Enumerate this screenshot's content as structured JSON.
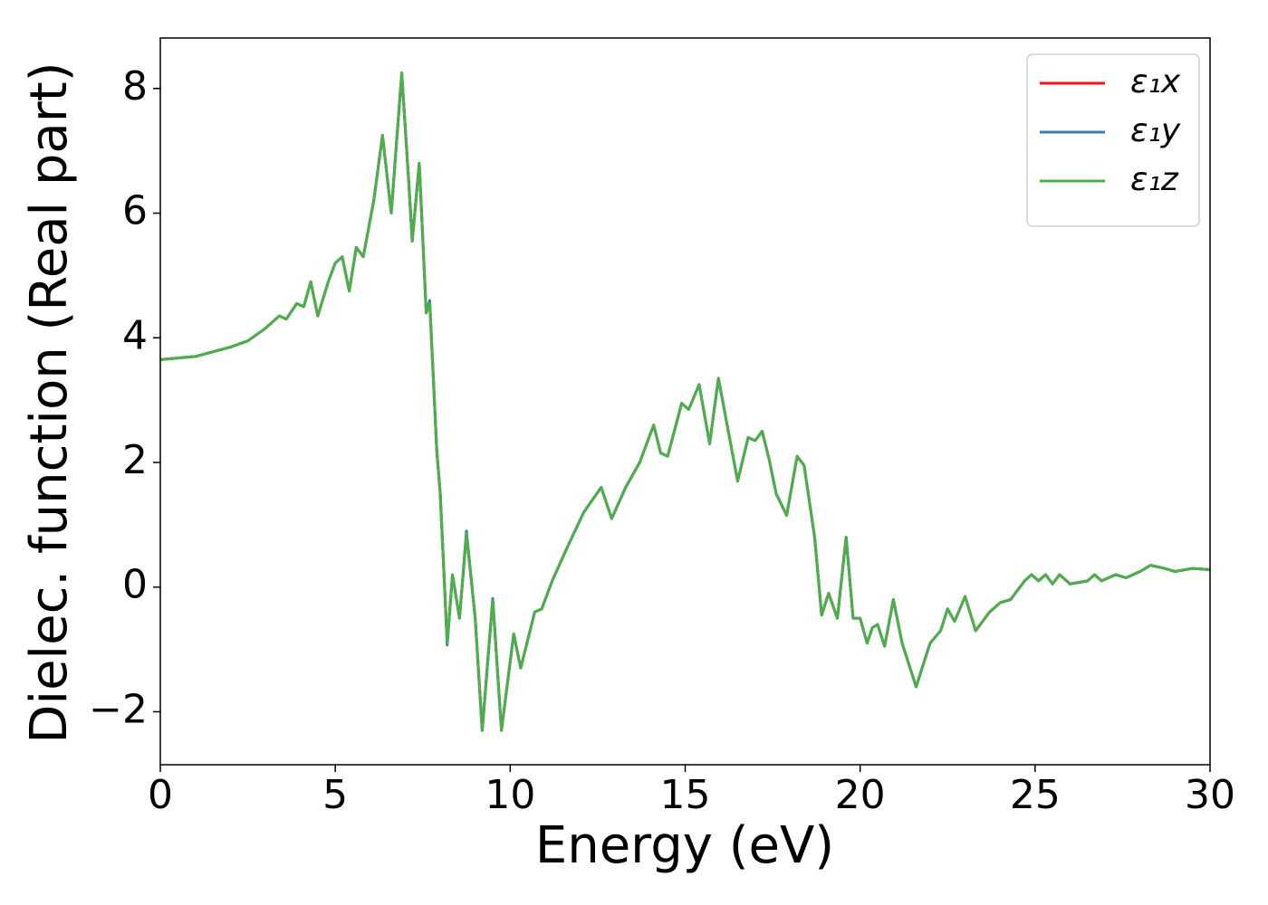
{
  "chart_data": {
    "type": "line",
    "xlabel": "Energy (eV)",
    "ylabel": "Dielec. function (Real part)",
    "x": [
      0,
      1,
      2,
      2.5,
      3,
      3.4,
      3.6,
      3.9,
      4.1,
      4.3,
      4.5,
      4.8,
      5.0,
      5.2,
      5.4,
      5.6,
      5.8,
      6.1,
      6.35,
      6.6,
      6.9,
      7.1,
      7.2,
      7.4,
      7.6,
      7.7,
      7.9,
      8.0,
      8.2,
      8.35,
      8.55,
      8.75,
      9.0,
      9.2,
      9.5,
      9.75,
      10.1,
      10.3,
      10.7,
      10.9,
      11.2,
      11.6,
      12.1,
      12.6,
      12.9,
      13.3,
      13.7,
      14.1,
      14.3,
      14.5,
      14.9,
      15.1,
      15.4,
      15.7,
      15.95,
      16.2,
      16.5,
      16.8,
      17.0,
      17.2,
      17.4,
      17.6,
      17.9,
      18.2,
      18.4,
      18.7,
      18.9,
      19.1,
      19.35,
      19.6,
      19.8,
      20.0,
      20.2,
      20.35,
      20.5,
      20.7,
      20.95,
      21.2,
      21.6,
      22.0,
      22.3,
      22.5,
      22.7,
      23.0,
      23.3,
      23.7,
      24.0,
      24.3,
      24.7,
      24.9,
      25.1,
      25.3,
      25.5,
      25.7,
      26.0,
      26.5,
      26.7,
      26.9,
      27.3,
      27.6,
      28.0,
      28.3,
      28.7,
      29.0,
      29.5,
      30
    ],
    "series": [
      {
        "name": "ε₁x",
        "color": "#e41a1c",
        "values": [
          3.65,
          3.7,
          3.85,
          3.95,
          4.15,
          4.35,
          4.3,
          4.55,
          4.5,
          4.9,
          4.35,
          4.9,
          5.2,
          5.3,
          4.75,
          5.45,
          5.3,
          6.2,
          7.25,
          6.0,
          8.25,
          6.5,
          5.55,
          6.8,
          4.4,
          4.55,
          2.2,
          1.5,
          -0.9,
          0.2,
          -0.5,
          0.85,
          -0.5,
          -2.3,
          -0.2,
          -2.3,
          -0.75,
          -1.3,
          -0.4,
          -0.35,
          0.1,
          0.6,
          1.2,
          1.6,
          1.1,
          1.6,
          2.0,
          2.6,
          2.15,
          2.1,
          2.95,
          2.85,
          3.25,
          2.3,
          3.35,
          2.6,
          1.7,
          2.4,
          2.35,
          2.5,
          2.05,
          1.5,
          1.15,
          2.1,
          1.95,
          0.8,
          -0.45,
          -0.1,
          -0.5,
          0.8,
          -0.5,
          -0.5,
          -0.9,
          -0.65,
          -0.6,
          -0.95,
          -0.2,
          -0.9,
          -1.6,
          -0.9,
          -0.7,
          -0.35,
          -0.55,
          -0.15,
          -0.7,
          -0.4,
          -0.25,
          -0.2,
          0.1,
          0.2,
          0.1,
          0.2,
          0.05,
          0.2,
          0.05,
          0.1,
          0.2,
          0.1,
          0.2,
          0.15,
          0.25,
          0.35,
          0.3,
          0.25,
          0.3,
          0.28
        ]
      },
      {
        "name": "ε₁y",
        "color": "#377eb8",
        "values": [
          3.65,
          3.7,
          3.85,
          3.95,
          4.15,
          4.35,
          4.3,
          4.55,
          4.5,
          4.9,
          4.35,
          4.9,
          5.2,
          5.3,
          4.75,
          5.45,
          5.3,
          6.2,
          7.25,
          6.0,
          8.25,
          6.5,
          5.55,
          6.8,
          4.4,
          4.6,
          2.2,
          1.5,
          -0.93,
          0.2,
          -0.5,
          0.9,
          -0.5,
          -2.3,
          -0.18,
          -2.3,
          -0.75,
          -1.3,
          -0.4,
          -0.35,
          0.1,
          0.6,
          1.2,
          1.6,
          1.1,
          1.6,
          2.0,
          2.6,
          2.15,
          2.1,
          2.95,
          2.85,
          3.25,
          2.3,
          3.35,
          2.6,
          1.7,
          2.4,
          2.35,
          2.5,
          2.05,
          1.5,
          1.15,
          2.1,
          1.95,
          0.8,
          -0.45,
          -0.1,
          -0.5,
          0.8,
          -0.5,
          -0.5,
          -0.9,
          -0.65,
          -0.6,
          -0.95,
          -0.2,
          -0.9,
          -1.6,
          -0.9,
          -0.7,
          -0.35,
          -0.55,
          -0.15,
          -0.7,
          -0.4,
          -0.25,
          -0.2,
          0.1,
          0.2,
          0.1,
          0.2,
          0.05,
          0.2,
          0.05,
          0.1,
          0.2,
          0.1,
          0.2,
          0.15,
          0.25,
          0.35,
          0.3,
          0.25,
          0.3,
          0.28
        ]
      },
      {
        "name": "ε₁z",
        "color": "#4daf4a",
        "values": [
          3.65,
          3.7,
          3.85,
          3.95,
          4.15,
          4.35,
          4.3,
          4.55,
          4.5,
          4.9,
          4.35,
          4.9,
          5.2,
          5.3,
          4.75,
          5.45,
          5.3,
          6.2,
          7.25,
          6.0,
          8.25,
          6.5,
          5.55,
          6.8,
          4.4,
          4.55,
          2.2,
          1.5,
          -0.9,
          0.2,
          -0.5,
          0.85,
          -0.5,
          -2.3,
          -0.2,
          -2.3,
          -0.75,
          -1.3,
          -0.4,
          -0.35,
          0.1,
          0.6,
          1.2,
          1.6,
          1.1,
          1.6,
          2.0,
          2.6,
          2.15,
          2.1,
          2.95,
          2.85,
          3.25,
          2.3,
          3.35,
          2.6,
          1.7,
          2.4,
          2.35,
          2.5,
          2.05,
          1.5,
          1.15,
          2.1,
          1.95,
          0.8,
          -0.45,
          -0.1,
          -0.5,
          0.8,
          -0.5,
          -0.5,
          -0.9,
          -0.65,
          -0.6,
          -0.95,
          -0.2,
          -0.9,
          -1.6,
          -0.9,
          -0.7,
          -0.35,
          -0.55,
          -0.15,
          -0.7,
          -0.4,
          -0.25,
          -0.2,
          0.1,
          0.2,
          0.1,
          0.2,
          0.05,
          0.2,
          0.05,
          0.1,
          0.2,
          0.1,
          0.2,
          0.15,
          0.25,
          0.35,
          0.3,
          0.25,
          0.3,
          0.28
        ]
      }
    ],
    "xlim": [
      0,
      30
    ],
    "xticks": [
      0,
      5,
      10,
      15,
      20,
      25,
      30
    ],
    "ylim": [
      -2.85,
      8.81
    ],
    "yticks": [
      {
        "value": -2,
        "label": "−2"
      },
      0,
      2,
      4,
      6,
      8
    ],
    "legend": "upper right"
  }
}
